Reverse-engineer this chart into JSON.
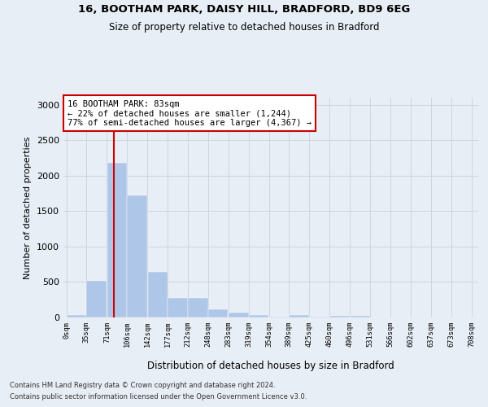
{
  "title_line1": "16, BOOTHAM PARK, DAISY HILL, BRADFORD, BD9 6EG",
  "title_line2": "Size of property relative to detached houses in Bradford",
  "xlabel": "Distribution of detached houses by size in Bradford",
  "ylabel": "Number of detached properties",
  "footnote1": "Contains HM Land Registry data © Crown copyright and database right 2024.",
  "footnote2": "Contains public sector information licensed under the Open Government Licence v3.0.",
  "annotation_title": "16 BOOTHAM PARK: 83sqm",
  "annotation_line2": "← 22% of detached houses are smaller (1,244)",
  "annotation_line3": "77% of semi-detached houses are larger (4,367) →",
  "property_size": 83,
  "bar_edges": [
    0,
    35,
    71,
    106,
    142,
    177,
    212,
    248,
    283,
    319,
    354,
    389,
    425,
    460,
    496,
    531,
    566,
    602,
    637,
    673,
    708
  ],
  "bar_heights": [
    30,
    520,
    2185,
    1720,
    640,
    280,
    280,
    115,
    70,
    40,
    15,
    30,
    10,
    20,
    25,
    0,
    0,
    0,
    0,
    0
  ],
  "bar_color": "#aec6e8",
  "bar_edge_color": "#aec6e8",
  "vline_color": "#cc0000",
  "vline_x": 83,
  "ylim": [
    0,
    3100
  ],
  "yticks": [
    0,
    500,
    1000,
    1500,
    2000,
    2500,
    3000
  ],
  "annotation_box_color": "#ffffff",
  "annotation_border_color": "#cc0000",
  "grid_color": "#cdd5e0",
  "background_color": "#e8eef5"
}
